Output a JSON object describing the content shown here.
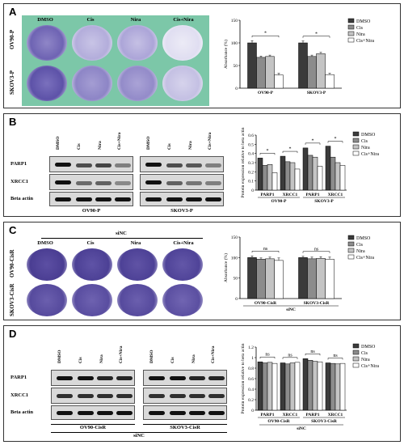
{
  "panels": {
    "A": {
      "label": "A",
      "col_labels": [
        "DMSO",
        "Cis",
        "Nira",
        "Cis+Nira"
      ],
      "row_labels": [
        "OV90-P",
        "SKOV3-P"
      ]
    },
    "B": {
      "label": "B",
      "lane_labels": [
        "DMSO",
        "Cis",
        "Nira",
        "Cis+Nira"
      ],
      "row_labels": [
        "PARP1",
        "XRCC1",
        "Beta actin"
      ],
      "group_labels": [
        "OV90-P",
        "SKOV3-P"
      ]
    },
    "C": {
      "label": "C",
      "title": "siNC",
      "col_labels": [
        "DMSO",
        "Cis",
        "Nira",
        "Cis+Nira"
      ],
      "row_labels": [
        "OV90-CisR",
        "SKOV3-CisR"
      ]
    },
    "D": {
      "label": "D",
      "lane_labels": [
        "DMSO",
        "Cis",
        "Nira",
        "Cis+Nira"
      ],
      "row_labels": [
        "PARP1",
        "XRCC1",
        "Beta actin"
      ],
      "group_labels": [
        "OV90-CisR",
        "SKOV3-CisR"
      ],
      "footer": "siNC"
    }
  },
  "chart_data": [
    {
      "type": "bar",
      "panel": "A",
      "categories": [
        "OV90-P",
        "SKOV3-P"
      ],
      "series": [
        {
          "name": "DMSO",
          "values": [
            100,
            100
          ],
          "errors": [
            5,
            4
          ]
        },
        {
          "name": "Cis",
          "values": [
            68,
            70
          ],
          "errors": [
            3,
            3
          ]
        },
        {
          "name": "Nira",
          "values": [
            70,
            76
          ],
          "errors": [
            3,
            3
          ]
        },
        {
          "name": "Cis+Nira",
          "values": [
            29,
            30
          ],
          "errors": [
            4,
            3
          ]
        }
      ],
      "ylabel": "Absorbance (%)",
      "ylim": [
        0,
        150
      ],
      "yticks": [
        0,
        50,
        100,
        150
      ],
      "significance": [
        "*",
        "*"
      ],
      "legend": "right"
    },
    {
      "type": "bar",
      "panel": "B",
      "categories": [
        "PARP1",
        "XRCC1",
        "PARP1",
        "XRCC1"
      ],
      "group_labels": [
        "OV90-P",
        "SKOV3-P"
      ],
      "series": [
        {
          "name": "DMSO",
          "values": [
            0.35,
            0.37,
            0.46,
            0.48
          ]
        },
        {
          "name": "Cis",
          "values": [
            0.27,
            0.31,
            0.38,
            0.36
          ]
        },
        {
          "name": "Nira",
          "values": [
            0.28,
            0.3,
            0.36,
            0.3
          ]
        },
        {
          "name": "Cis+Nira",
          "values": [
            0.19,
            0.23,
            0.26,
            0.27
          ]
        }
      ],
      "ylabel": "Protein expression relative to beta actin",
      "ylim": [
        0,
        0.6
      ],
      "yticks": [
        0.0,
        0.1,
        0.2,
        0.3,
        0.4,
        0.5,
        0.6
      ],
      "significance": [
        "*",
        "*",
        "*",
        "*"
      ],
      "legend": "right"
    },
    {
      "type": "bar",
      "panel": "C",
      "categories": [
        "OV90-CisR",
        "SKOV3-CisR"
      ],
      "series": [
        {
          "name": "DMSO",
          "values": [
            100,
            100
          ],
          "errors": [
            4,
            3
          ]
        },
        {
          "name": "Cis",
          "values": [
            96,
            97
          ],
          "errors": [
            3,
            4
          ]
        },
        {
          "name": "Nira",
          "values": [
            97,
            98
          ],
          "errors": [
            4,
            4
          ]
        },
        {
          "name": "Cis+Nira",
          "values": [
            93,
            96
          ],
          "errors": [
            6,
            5
          ]
        }
      ],
      "ylabel": "Absorbance (%)",
      "xlabel": "siNC",
      "ylim": [
        0,
        150
      ],
      "yticks": [
        0,
        50,
        100,
        150
      ],
      "significance": [
        "ns",
        "ns"
      ],
      "legend": "right"
    },
    {
      "type": "bar",
      "panel": "D",
      "categories": [
        "PARP1",
        "XRCC1",
        "PARP1",
        "XRCC1"
      ],
      "group_labels": [
        "OV90-CisR",
        "SKOV3-CisR"
      ],
      "series": [
        {
          "name": "DMSO",
          "values": [
            0.92,
            0.9,
            0.98,
            0.9
          ]
        },
        {
          "name": "Cis",
          "values": [
            0.9,
            0.88,
            0.95,
            0.89
          ]
        },
        {
          "name": "Nira",
          "values": [
            0.91,
            0.9,
            0.93,
            0.88
          ]
        },
        {
          "name": "Cis+Nira",
          "values": [
            0.89,
            0.91,
            0.92,
            0.89
          ]
        }
      ],
      "ylabel": "Protein expression relative to beta actin",
      "xlabel": "siNC",
      "ylim": [
        0,
        1.2
      ],
      "yticks": [
        0.0,
        0.2,
        0.4,
        0.6,
        0.8,
        1.0,
        1.2
      ],
      "significance": [
        "ns",
        "ns",
        "ns",
        "ns"
      ],
      "legend": "right"
    }
  ],
  "colors": {
    "DMSO": "#3b3b3b",
    "Cis": "#8c8c8c",
    "Nira": "#c4c4c4",
    "Cis+Nira": "#ffffff",
    "plate_bg": "#7cc7a8",
    "plate_bg_C": "#ffffff"
  }
}
